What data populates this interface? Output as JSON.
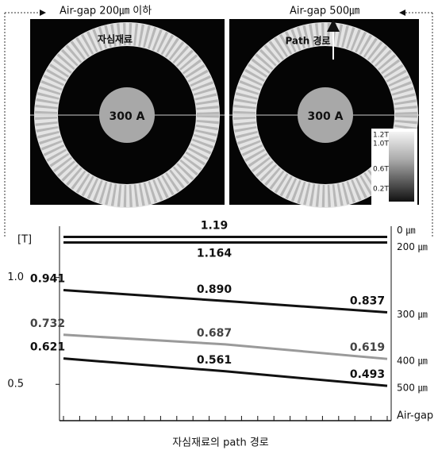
{
  "panels": [
    {
      "label": "Air-gap 200㎛ 이하",
      "ring_label": "자심재료",
      "center_label": "300 A"
    },
    {
      "label": "Air-gap 500㎛",
      "ring_label": "Path 경로",
      "center_label": "300 A",
      "colorbar": [
        "1.2T",
        "1.0T",
        "0.6T",
        "0.2T"
      ]
    }
  ],
  "chart_data": {
    "type": "line",
    "y_label": "[T]",
    "x_label": "자심재료의 path 경로",
    "legend_title": "Air-gap",
    "categories": [
      null,
      null,
      null
    ],
    "series": [
      {
        "name": "0 ㎛",
        "color": "#111111",
        "values": [
          1.19,
          1.19,
          1.19
        ],
        "value_labels": [
          null,
          "1.19",
          null
        ]
      },
      {
        "name": "200 ㎛",
        "color": "#111111",
        "values": [
          1.164,
          1.164,
          1.164
        ],
        "value_labels": [
          null,
          "1.164",
          null
        ]
      },
      {
        "name": "300 ㎛",
        "color": "#111111",
        "values": [
          0.941,
          0.89,
          0.837
        ],
        "value_labels": [
          "0.941",
          "0.890",
          "0.837"
        ]
      },
      {
        "name": "400 ㎛",
        "color": "#9a9a9a",
        "values": [
          0.732,
          0.687,
          0.619
        ],
        "value_labels": [
          "0.732",
          "0.687",
          "0.619"
        ]
      },
      {
        "name": "500 ㎛",
        "color": "#111111",
        "values": [
          0.621,
          0.561,
          0.493
        ],
        "value_labels": [
          "0.621",
          "0.561",
          "0.493"
        ]
      }
    ],
    "ylim": [
      0.33,
      1.24
    ],
    "yticks": [
      {
        "value": 0.5,
        "label": "0.5"
      },
      {
        "value": 1,
        "label": "1.0"
      }
    ]
  }
}
